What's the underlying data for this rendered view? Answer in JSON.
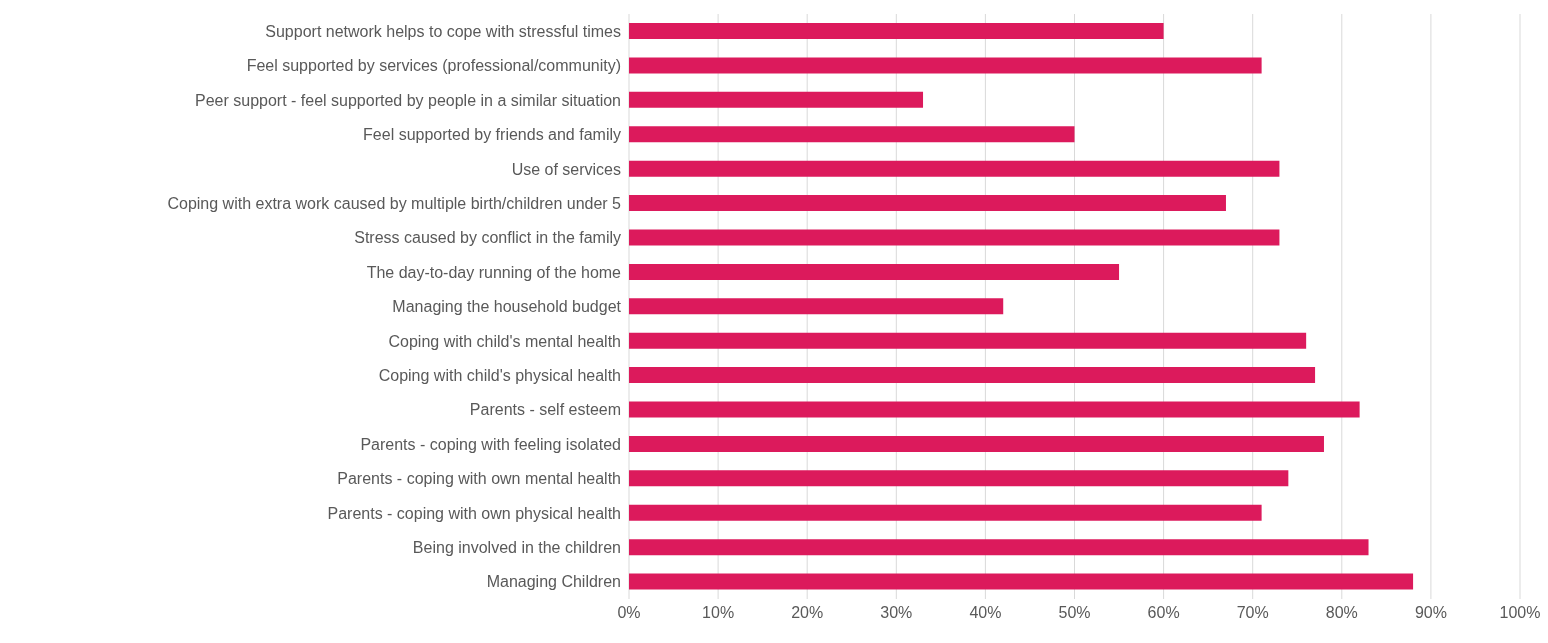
{
  "chart_data": {
    "type": "bar",
    "orientation": "horizontal",
    "categories": [
      "Support network helps to cope with stressful times",
      "Feel supported by services (professional/community)",
      "Peer support - feel supported by people in a similar situation",
      "Feel supported by friends and family",
      "Use of services",
      "Coping with extra work caused by multiple birth/children under 5",
      "Stress caused by conflict in the family",
      "The day-to-day running of the home",
      "Managing the household budget",
      "Coping with child's mental health",
      "Coping with child's physical health",
      "Parents - self esteem",
      "Parents - coping with feeling isolated",
      "Parents - coping with own mental health",
      "Parents - coping with own physical health",
      "Being involved in the children",
      "Managing Children"
    ],
    "values": [
      60,
      71,
      33,
      50,
      73,
      67,
      73,
      55,
      42,
      76,
      77,
      82,
      78,
      74,
      71,
      83,
      88
    ],
    "color": "#dc1a5c",
    "xlim": [
      0,
      100
    ],
    "xticks": [
      {
        "value": 0,
        "label": "0%"
      },
      {
        "value": 10,
        "label": "10%"
      },
      {
        "value": 20,
        "label": "20%"
      },
      {
        "value": 30,
        "label": "30%"
      },
      {
        "value": 40,
        "label": "40%"
      },
      {
        "value": 50,
        "label": "50%"
      },
      {
        "value": 60,
        "label": "60%"
      },
      {
        "value": 70,
        "label": "70%"
      },
      {
        "value": 80,
        "label": "80%"
      },
      {
        "value": 90,
        "label": "90%"
      },
      {
        "value": 100,
        "label": "100%"
      }
    ],
    "grid": "x"
  }
}
